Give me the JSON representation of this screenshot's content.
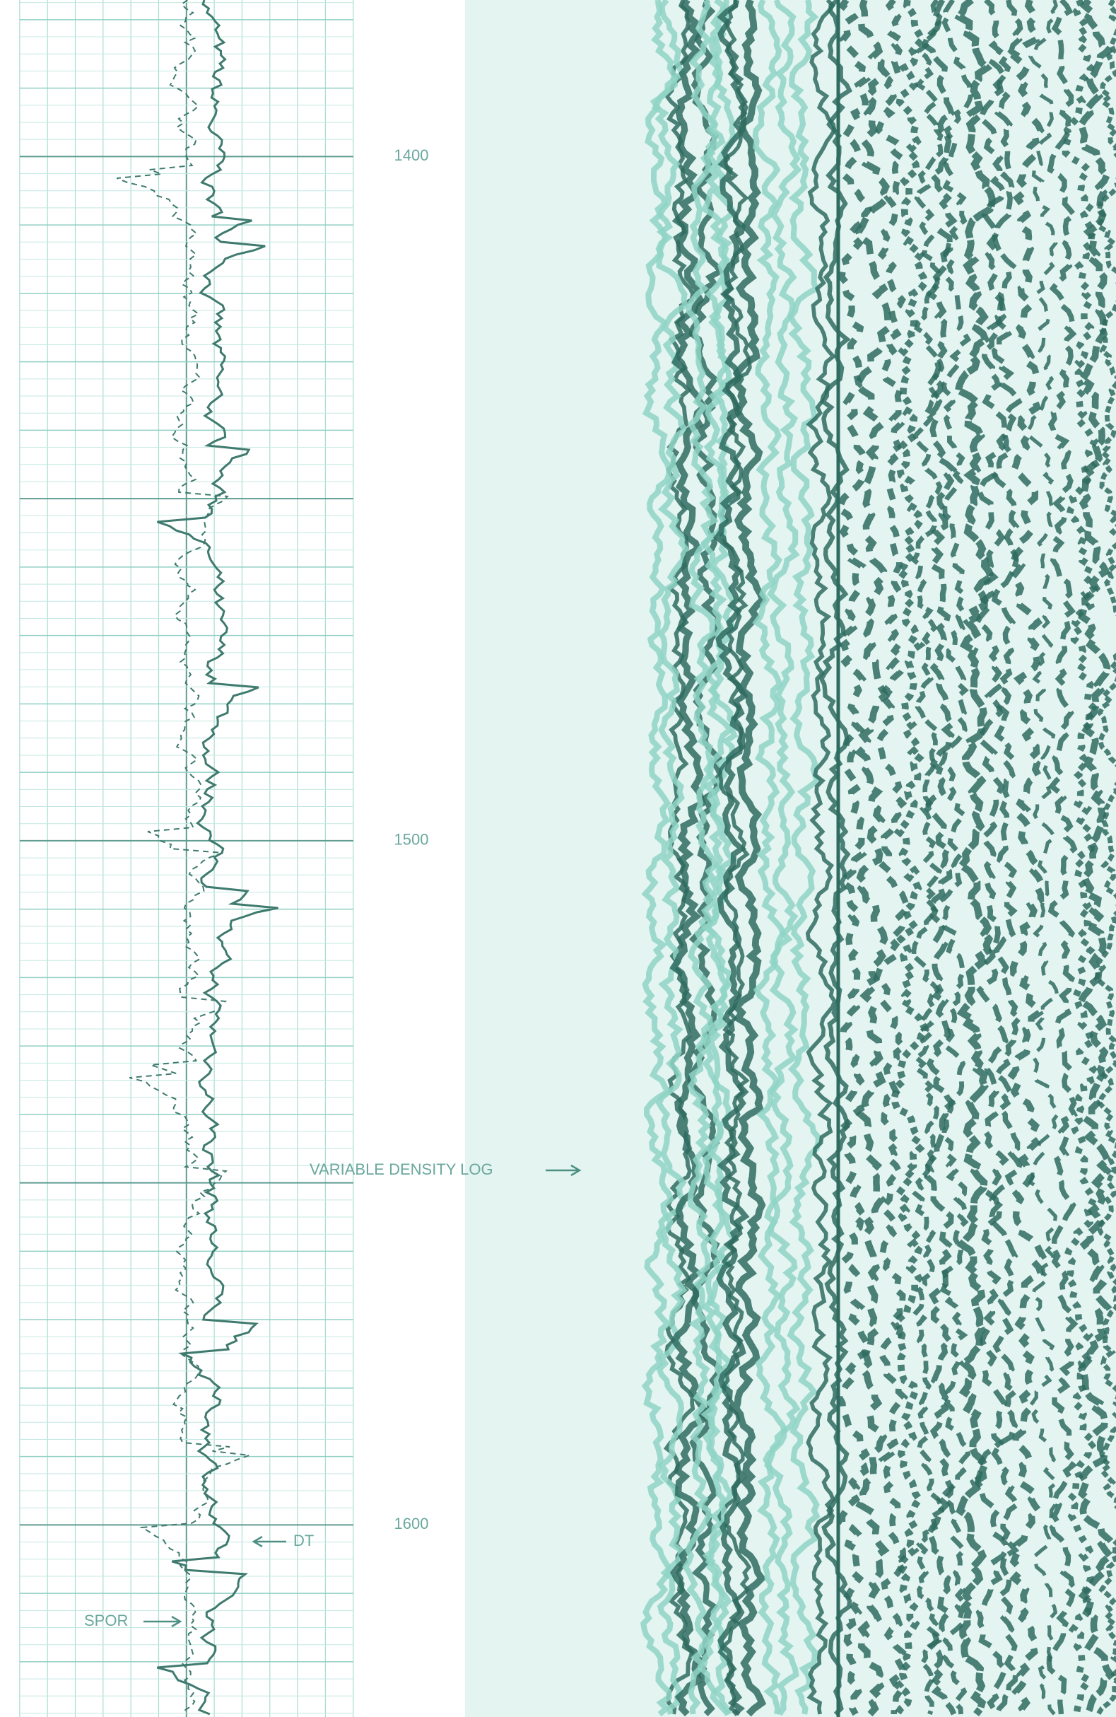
{
  "depth_labels": [
    1400,
    1500,
    1600
  ],
  "annotations": {
    "vdl": "VARIABLE DENSITY LOG",
    "dt": "DT",
    "spor": "SPOR"
  }
}
